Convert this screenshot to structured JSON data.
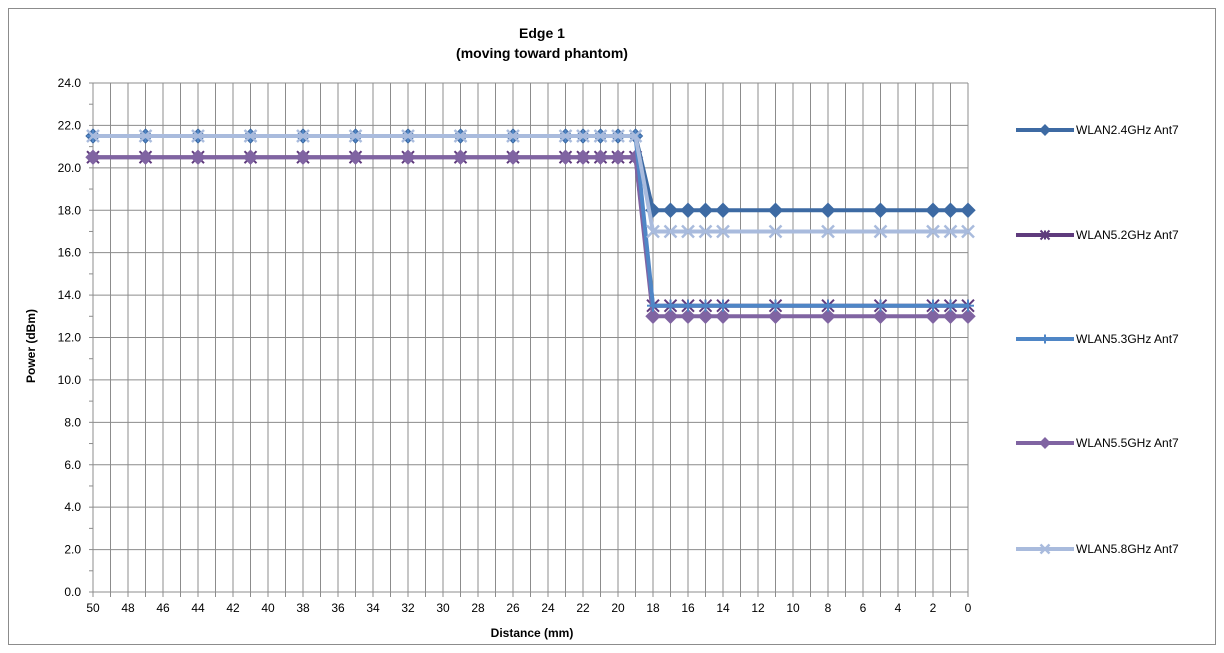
{
  "chart_data": {
    "type": "line",
    "title": "Edge 1",
    "subtitle": "(moving toward phantom)",
    "xlabel": "Distance (mm)",
    "ylabel": "Power (dBm)",
    "x_tick_labels": [
      "50",
      "48",
      "46",
      "44",
      "42",
      "40",
      "38",
      "36",
      "34",
      "32",
      "30",
      "28",
      "26",
      "24",
      "22",
      "20",
      "18",
      "16",
      "14",
      "12",
      "10",
      "8",
      "6",
      "4",
      "2",
      "0"
    ],
    "y_tick_labels": [
      "0.0",
      "2.0",
      "4.0",
      "6.0",
      "8.0",
      "10.0",
      "12.0",
      "14.0",
      "16.0",
      "18.0",
      "20.0",
      "22.0",
      "24.0"
    ],
    "xlim": [
      50,
      0
    ],
    "ylim": [
      0,
      24
    ],
    "grid": true,
    "legend_position": "right",
    "x": [
      50,
      47,
      44,
      41,
      38,
      35,
      32,
      29,
      26,
      23,
      22,
      21,
      20,
      19,
      18,
      17,
      16,
      15,
      14,
      11,
      8,
      5,
      2,
      1,
      0
    ],
    "series": [
      {
        "name": "WLAN2.4GHz Ant7",
        "color": "#3d6aa3",
        "marker": "diamond",
        "values": [
          21.5,
          21.5,
          21.5,
          21.5,
          21.5,
          21.5,
          21.5,
          21.5,
          21.5,
          21.5,
          21.5,
          21.5,
          21.5,
          21.5,
          18.0,
          18.0,
          18.0,
          18.0,
          18.0,
          18.0,
          18.0,
          18.0,
          18.0,
          18.0,
          18.0
        ]
      },
      {
        "name": "WLAN5.2GHz Ant7",
        "color": "#5f3b7d",
        "marker": "star",
        "values": [
          20.5,
          20.5,
          20.5,
          20.5,
          20.5,
          20.5,
          20.5,
          20.5,
          20.5,
          20.5,
          20.5,
          20.5,
          20.5,
          20.5,
          13.5,
          13.5,
          13.5,
          13.5,
          13.5,
          13.5,
          13.5,
          13.5,
          13.5,
          13.5,
          13.5
        ]
      },
      {
        "name": "WLAN5.3GHz Ant7",
        "color": "#4f86c6",
        "marker": "plus",
        "values": [
          21.5,
          21.5,
          21.5,
          21.5,
          21.5,
          21.5,
          21.5,
          21.5,
          21.5,
          21.5,
          21.5,
          21.5,
          21.5,
          21.5,
          13.5,
          13.5,
          13.5,
          13.5,
          13.5,
          13.5,
          13.5,
          13.5,
          13.5,
          13.5,
          13.5
        ]
      },
      {
        "name": "WLAN5.5GHz Ant7",
        "color": "#8064a2",
        "marker": "diamond",
        "values": [
          20.5,
          20.5,
          20.5,
          20.5,
          20.5,
          20.5,
          20.5,
          20.5,
          20.5,
          20.5,
          20.5,
          20.5,
          20.5,
          20.5,
          13.0,
          13.0,
          13.0,
          13.0,
          13.0,
          13.0,
          13.0,
          13.0,
          13.0,
          13.0,
          13.0
        ]
      },
      {
        "name": "WLAN5.8GHz Ant7",
        "color": "#a9bbdd",
        "marker": "x",
        "values": [
          21.5,
          21.5,
          21.5,
          21.5,
          21.5,
          21.5,
          21.5,
          21.5,
          21.5,
          21.5,
          21.5,
          21.5,
          21.5,
          21.5,
          17.0,
          17.0,
          17.0,
          17.0,
          17.0,
          17.0,
          17.0,
          17.0,
          17.0,
          17.0,
          17.0
        ]
      }
    ]
  }
}
